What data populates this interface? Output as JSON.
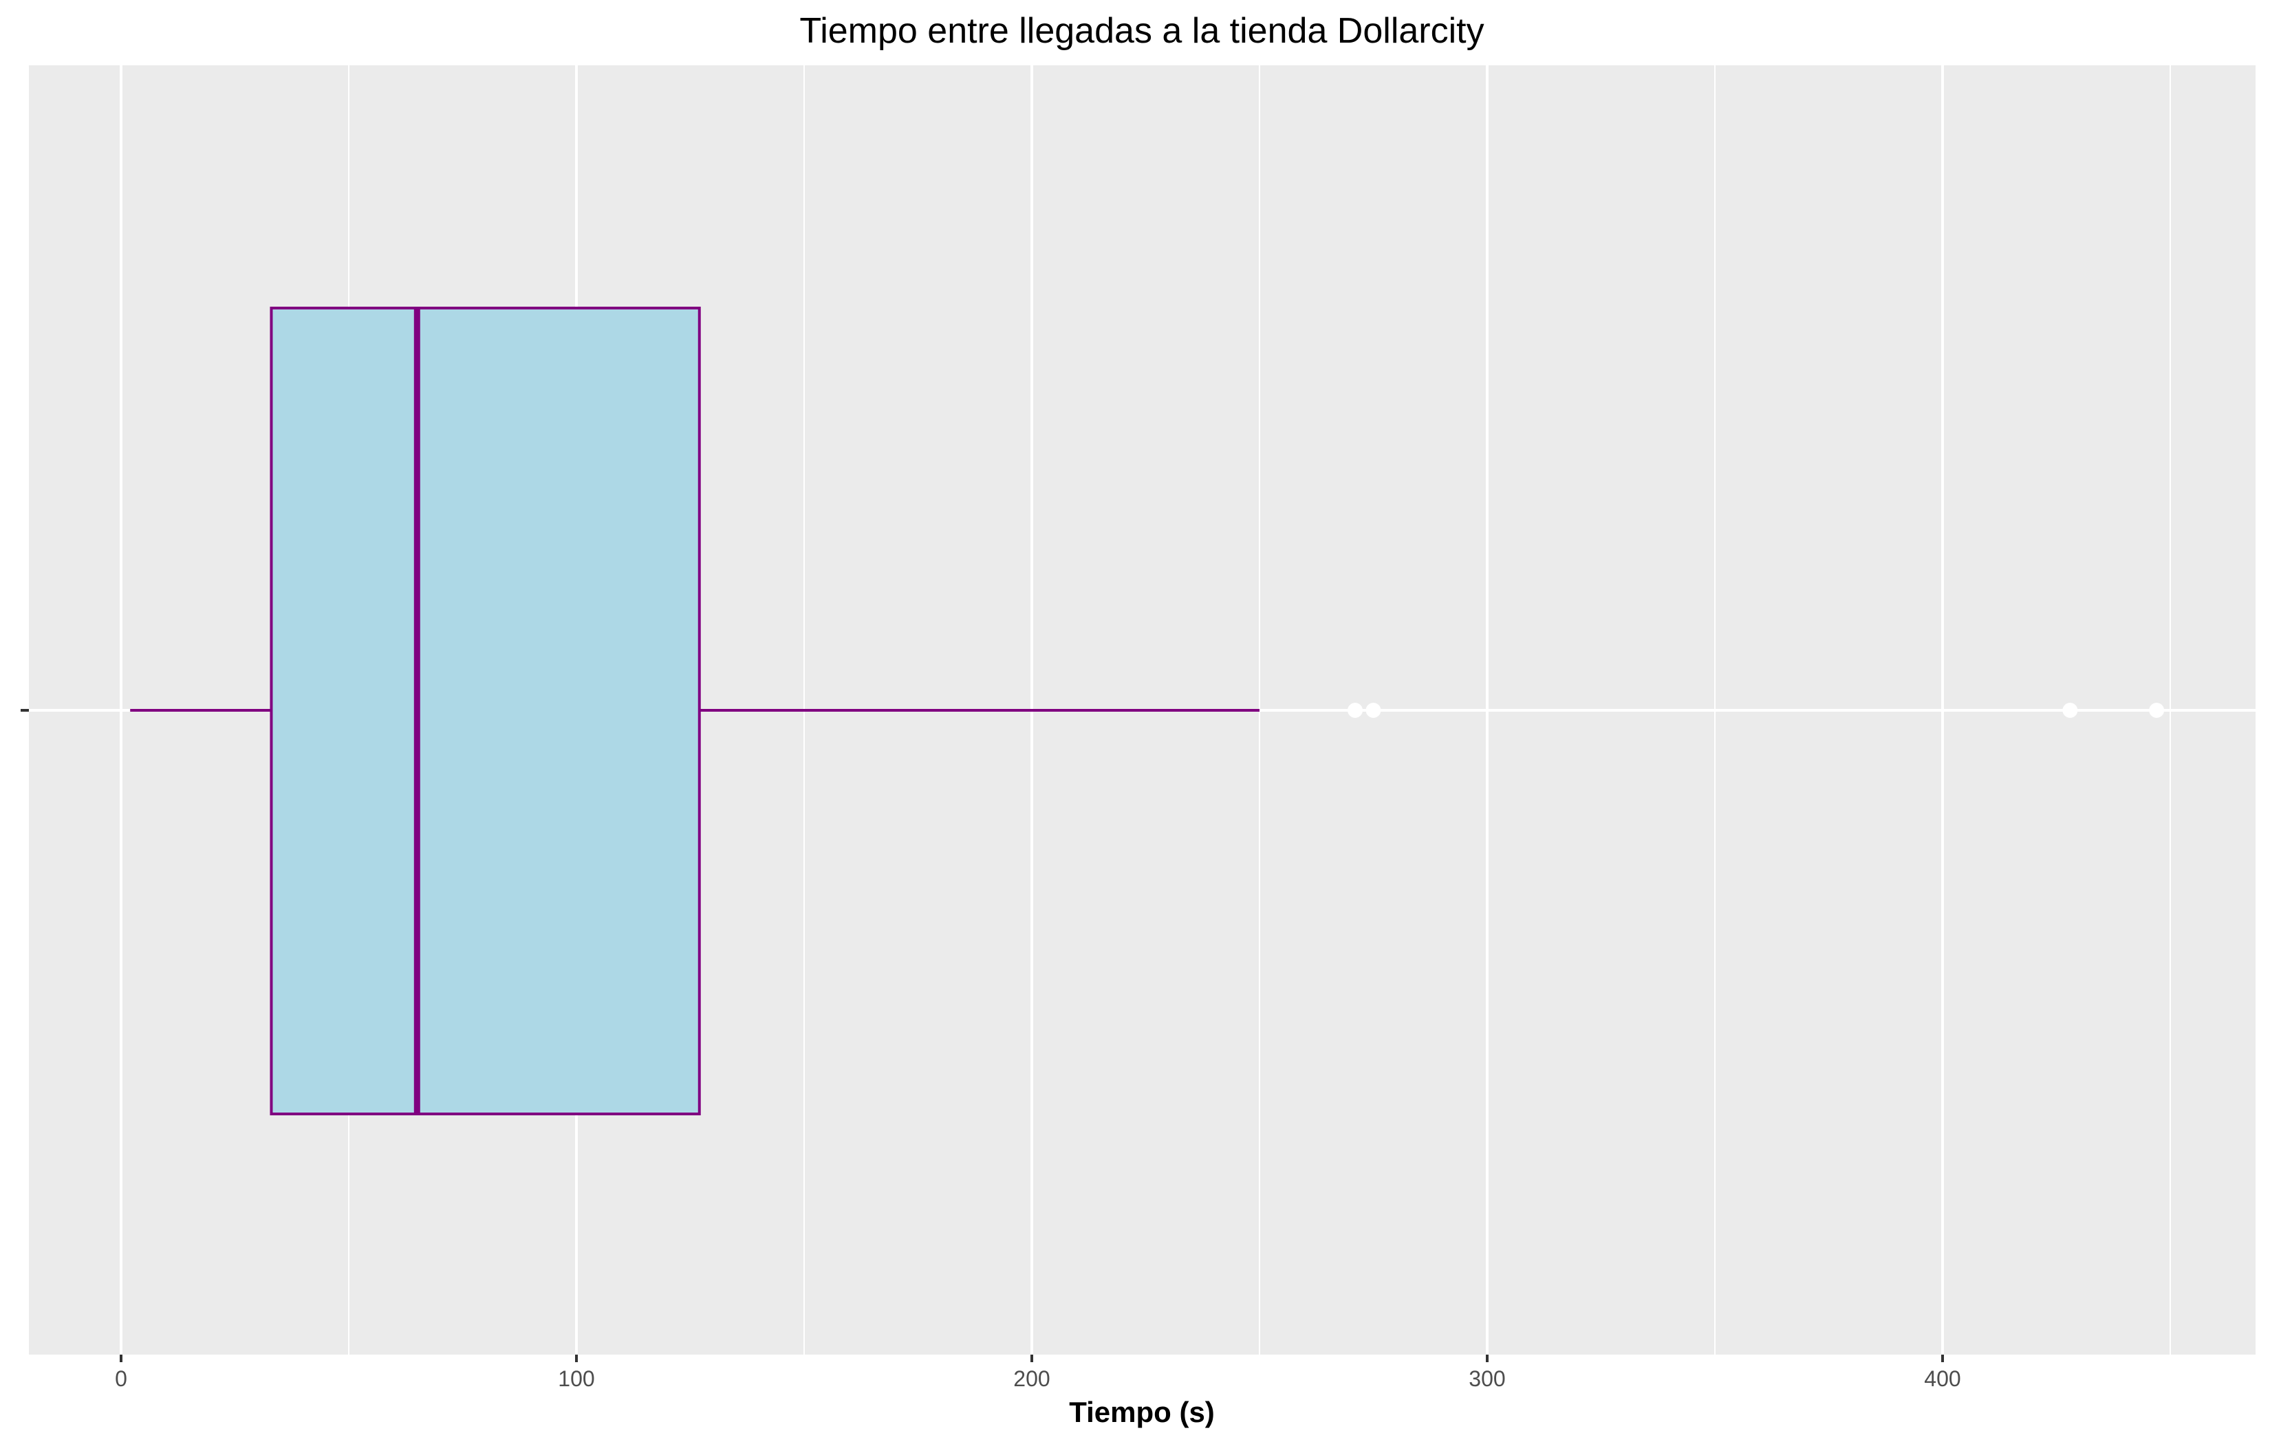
{
  "chart_data": {
    "type": "boxplot",
    "title": "Tiempo entre llegadas a la tienda Dollarcity",
    "xlabel": "Tiempo (s)",
    "ylabel": "",
    "xlim": [
      -20,
      470
    ],
    "xticks": [
      0,
      100,
      200,
      300,
      400
    ],
    "x_minor_gridlines": [
      50,
      150,
      250,
      350,
      450
    ],
    "orientation": "horizontal",
    "grid": true,
    "box": {
      "min_whisker": 2,
      "q1": 33,
      "median": 65,
      "q3": 127,
      "max_whisker": 250,
      "outliers": [
        271,
        275,
        428,
        447
      ]
    },
    "colors": {
      "panel_background": "#ebebeb",
      "gridline": "#ffffff",
      "box_fill": "#add8e6",
      "box_outline": "#800080",
      "outlier": "#ffffff"
    }
  }
}
